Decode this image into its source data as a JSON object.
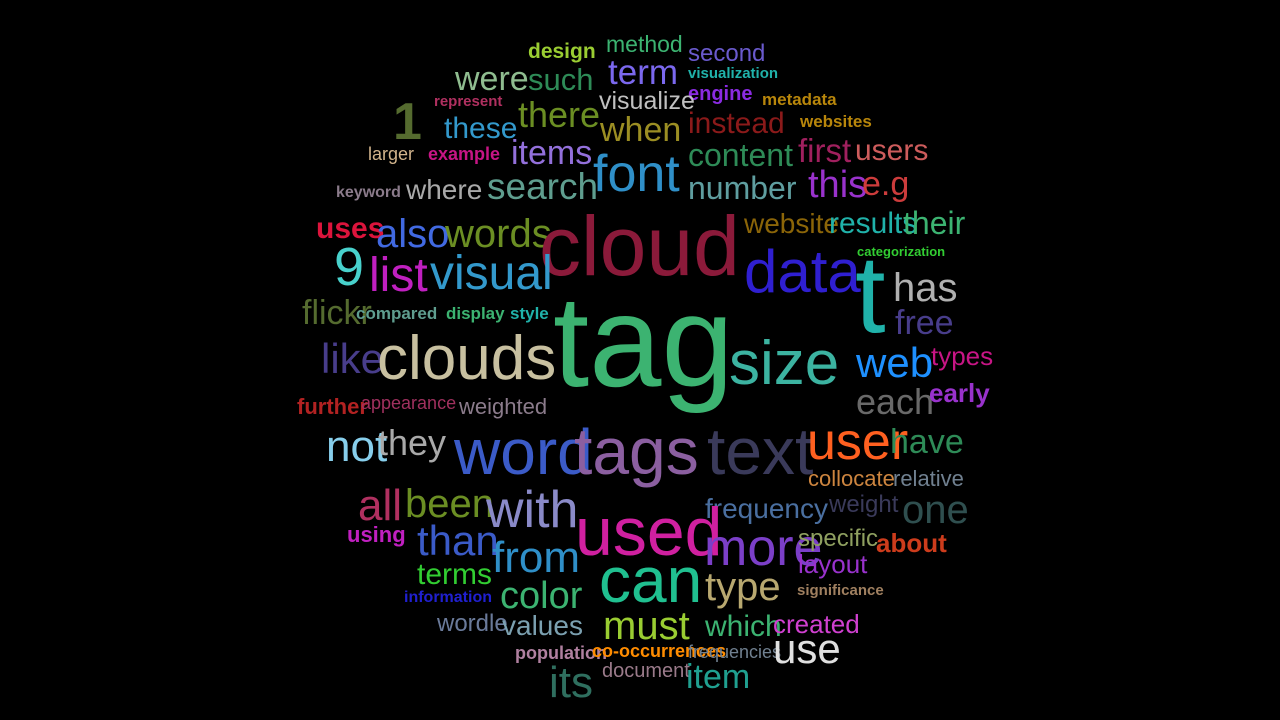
{
  "words": [
    {
      "text": "design",
      "color": "#9acd32"
    },
    {
      "text": "method",
      "color": "#3cb371"
    },
    {
      "text": "second",
      "color": "#6a5acd"
    },
    {
      "text": "such",
      "color": "#2e8b57"
    },
    {
      "text": "term",
      "color": "#7b68ee"
    },
    {
      "text": "visualization",
      "color": "#20b2aa"
    },
    {
      "text": "were",
      "color": "#8fbc8f"
    },
    {
      "text": "engine",
      "color": "#8a2be2"
    },
    {
      "text": "metadata",
      "color": "#b8860b"
    },
    {
      "text": "1",
      "color": "#556b2f"
    },
    {
      "text": "represent",
      "color": "#b03060"
    },
    {
      "text": "there",
      "color": "#6b8e23"
    },
    {
      "text": "visualize",
      "color": "#c0c0c0"
    },
    {
      "text": "instead",
      "color": "#8b1a1a"
    },
    {
      "text": "websites",
      "color": "#b8860b"
    },
    {
      "text": "these",
      "color": "#3399cc"
    },
    {
      "text": "when",
      "color": "#9b8e23"
    },
    {
      "text": "larger",
      "color": "#d2b48c"
    },
    {
      "text": "example",
      "color": "#c71585"
    },
    {
      "text": "items",
      "color": "#9370db"
    },
    {
      "text": "content",
      "color": "#2e8b57"
    },
    {
      "text": "first",
      "color": "#a0205e"
    },
    {
      "text": "users",
      "color": "#cd5c5c"
    },
    {
      "text": "font",
      "color": "#2f8fc8"
    },
    {
      "text": "keyword",
      "color": "#8b7b8b"
    },
    {
      "text": "where",
      "color": "#a9a9a9"
    },
    {
      "text": "search",
      "color": "#5f9e8f"
    },
    {
      "text": "number",
      "color": "#5f9ea0"
    },
    {
      "text": "this",
      "color": "#9932cc"
    },
    {
      "text": "e.g",
      "color": "#cd3c3c"
    },
    {
      "text": "uses",
      "color": "#dc143c"
    },
    {
      "text": "also",
      "color": "#4169e1"
    },
    {
      "text": "words",
      "color": "#6b8e23"
    },
    {
      "text": "cloud",
      "color": "#8b1a3a"
    },
    {
      "text": "website",
      "color": "#8b6508"
    },
    {
      "text": "results",
      "color": "#20b2aa"
    },
    {
      "text": "their",
      "color": "#3cb371"
    },
    {
      "text": "categorization",
      "color": "#32cd32"
    },
    {
      "text": "9",
      "color": "#48d1cc"
    },
    {
      "text": "list",
      "color": "#c020c0"
    },
    {
      "text": "visual",
      "color": "#3399cc"
    },
    {
      "text": "data",
      "color": "#2f1fd0"
    },
    {
      "text": "t",
      "color": "#20b2aa"
    },
    {
      "text": "has",
      "color": "#b0b0b0"
    },
    {
      "text": "flickr",
      "color": "#556b2f"
    },
    {
      "text": "compared",
      "color": "#5f9e8f"
    },
    {
      "text": "display",
      "color": "#3cb371"
    },
    {
      "text": "style",
      "color": "#20b2aa"
    },
    {
      "text": "free",
      "color": "#483d8b"
    },
    {
      "text": "tag",
      "color": "#3cb371"
    },
    {
      "text": "like",
      "color": "#483d8b"
    },
    {
      "text": "clouds",
      "color": "#c8c0a0"
    },
    {
      "text": "size",
      "color": "#3cb3a1"
    },
    {
      "text": "web",
      "color": "#1e90ff"
    },
    {
      "text": "types",
      "color": "#c71585"
    },
    {
      "text": "further",
      "color": "#b22222"
    },
    {
      "text": "appearance",
      "color": "#a0305e"
    },
    {
      "text": "weighted",
      "color": "#8b7b8b"
    },
    {
      "text": "each",
      "color": "#696969"
    },
    {
      "text": "early",
      "color": "#9932cc"
    },
    {
      "text": "not",
      "color": "#87ceeb"
    },
    {
      "text": "they",
      "color": "#a9a9a9"
    },
    {
      "text": "word",
      "color": "#3b5bc8"
    },
    {
      "text": "tags",
      "color": "#8b5fa0"
    },
    {
      "text": "text",
      "color": "#3a3a5a"
    },
    {
      "text": "user",
      "color": "#ff6020"
    },
    {
      "text": "have",
      "color": "#2e8b57"
    },
    {
      "text": "collocate",
      "color": "#cd853f"
    },
    {
      "text": "relative",
      "color": "#708090"
    },
    {
      "text": "all",
      "color": "#b03060"
    },
    {
      "text": "been",
      "color": "#6b8e23"
    },
    {
      "text": "with",
      "color": "#8a8ac8"
    },
    {
      "text": "frequency",
      "color": "#4a6fa0"
    },
    {
      "text": "weight",
      "color": "#3a3a5a"
    },
    {
      "text": "one",
      "color": "#2f4f4f"
    },
    {
      "text": "using",
      "color": "#c020c0"
    },
    {
      "text": "than",
      "color": "#3b5bc8"
    },
    {
      "text": "used",
      "color": "#d020a0"
    },
    {
      "text": "more",
      "color": "#7b3fc8"
    },
    {
      "text": "specific",
      "color": "#8fa060"
    },
    {
      "text": "about",
      "color": "#cd3c1c"
    },
    {
      "text": "from",
      "color": "#2f8fc8"
    },
    {
      "text": "layout",
      "color": "#9932cc"
    },
    {
      "text": "terms",
      "color": "#32cd32"
    },
    {
      "text": "can",
      "color": "#20c090"
    },
    {
      "text": "type",
      "color": "#b8a870"
    },
    {
      "text": "significance",
      "color": "#a08060"
    },
    {
      "text": "information",
      "color": "#2020d0"
    },
    {
      "text": "color",
      "color": "#3cb371"
    },
    {
      "text": "wordle",
      "color": "#6a7a9a"
    },
    {
      "text": "values",
      "color": "#7ba0b0"
    },
    {
      "text": "must",
      "color": "#9acd32"
    },
    {
      "text": "which",
      "color": "#3cb371"
    },
    {
      "text": "created",
      "color": "#d040d0"
    },
    {
      "text": "population",
      "color": "#b080a0"
    },
    {
      "text": "co-occurrences",
      "color": "#ff8c00"
    },
    {
      "text": "frequencies",
      "color": "#708090"
    },
    {
      "text": "use",
      "color": "#e0e0e0"
    },
    {
      "text": "document",
      "color": "#9a7a8a"
    },
    {
      "text": "its",
      "color": "#2f6f5f"
    },
    {
      "text": "item",
      "color": "#20a090"
    }
  ]
}
